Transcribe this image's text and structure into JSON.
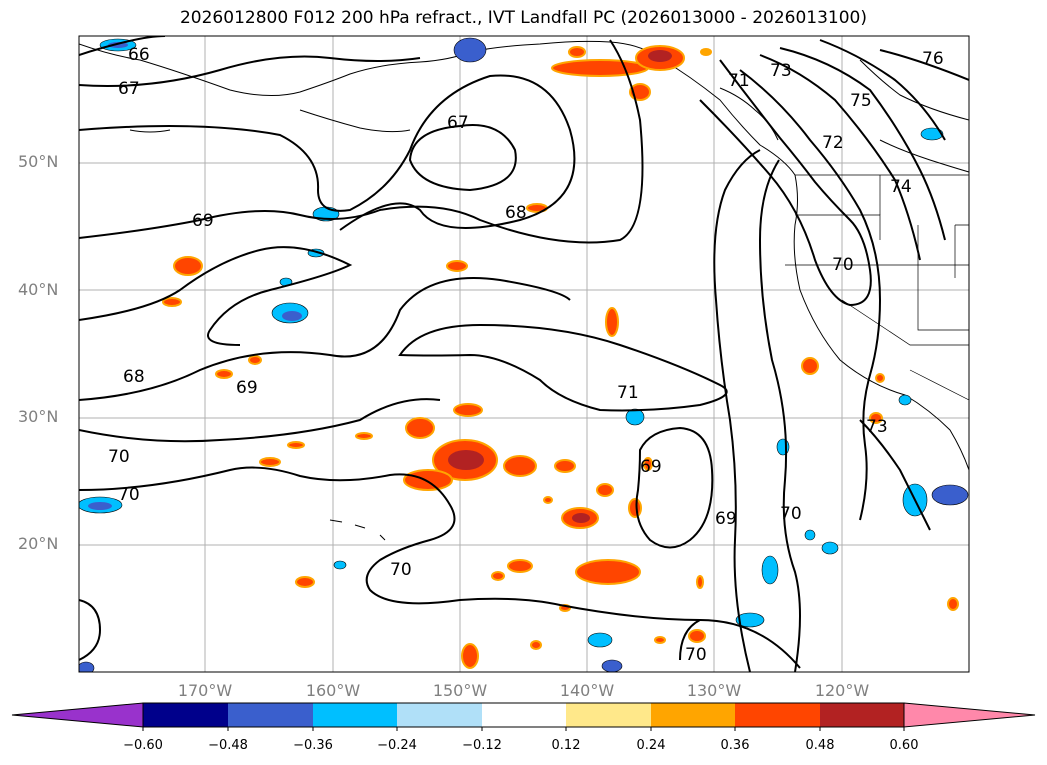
{
  "title": "2026012800 F012 200 hPa refract., IVT Landfall PC (2026013000 - 2026013100)",
  "lat_labels": [
    "50°N",
    "40°N",
    "30°N",
    "20°N"
  ],
  "lon_labels": [
    "170°W",
    "160°W",
    "150°W",
    "140°W",
    "130°W",
    "120°W"
  ],
  "contour_labels": [
    "66",
    "67",
    "67",
    "69",
    "68",
    "68",
    "69",
    "71",
    "70",
    "70",
    "69",
    "69",
    "70",
    "70",
    "70",
    "71",
    "73",
    "75",
    "72",
    "74",
    "70",
    "73",
    "76"
  ],
  "colorbar": {
    "ticks": [
      "−0.60",
      "−0.48",
      "−0.36",
      "−0.24",
      "−0.12",
      "0.12",
      "0.24",
      "0.36",
      "0.48",
      "0.60"
    ],
    "colors": [
      "#9932cc",
      "#00008b",
      "#3a5fcd",
      "#00bfff",
      "#b0e0f8",
      "#ffffff",
      "#ffe88a",
      "#ffa500",
      "#ff4500",
      "#b22222",
      "#ff88aa",
      "#ff88aa"
    ]
  }
}
